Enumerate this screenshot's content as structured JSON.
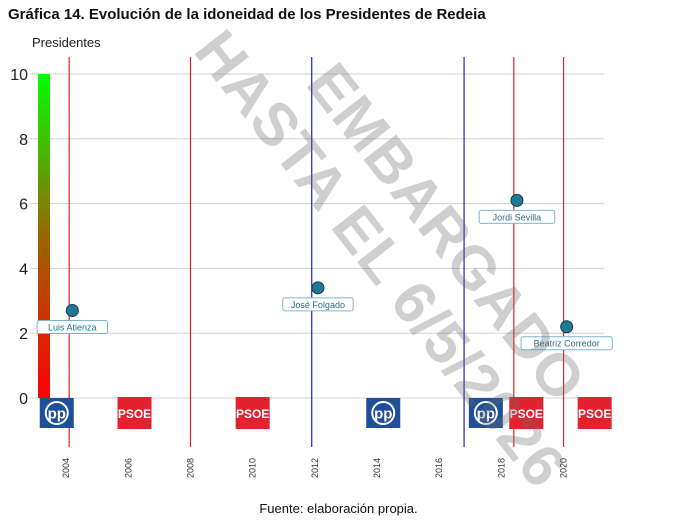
{
  "title": "Gráfica 14. Evolución de la idoneidad de los Presidentes de Redeia",
  "source": "Fuente: elaboración propia.",
  "watermark": "EMBARGADO HASTA EL 6/5/2026",
  "chart_data": {
    "type": "scatter",
    "title": "Gráfica 14. Evolución de la idoneidad de los Presidentes de Redeia",
    "ylabel": "Presidentes",
    "ylim": [
      0,
      10
    ],
    "xlim": [
      2003.0,
      2021.3
    ],
    "y_ticks": [
      0,
      2,
      4,
      6,
      8,
      10
    ],
    "x_ticks": [
      2004,
      2006,
      2008,
      2010,
      2012,
      2014,
      2016,
      2018,
      2020
    ],
    "grid": "horizontal",
    "points": [
      {
        "name": "Luis Atienza",
        "x": 2004.2,
        "y": 2.7
      },
      {
        "name": "José Folgado",
        "x": 2012.1,
        "y": 3.4
      },
      {
        "name": "Jordi Sevilla",
        "x": 2018.5,
        "y": 6.1
      },
      {
        "name": "Beatriz Corredor",
        "x": 2020.1,
        "y": 2.2
      }
    ],
    "vertical_lines": [
      {
        "x": 2004.1,
        "color": "#e0262a"
      },
      {
        "x": 2008.0,
        "color": "#e0262a"
      },
      {
        "x": 2011.9,
        "color": "#2020c0"
      },
      {
        "x": 2016.8,
        "color": "#2020c0"
      },
      {
        "x": 2018.4,
        "color": "#e0262a"
      },
      {
        "x": 2020.0,
        "color": "#e0262a"
      }
    ],
    "party_logos": [
      {
        "party": "PP",
        "x": 2003.7,
        "color": "#1f4e9a"
      },
      {
        "party": "PSOE",
        "x": 2006.2,
        "color": "#e3212f"
      },
      {
        "party": "PSOE",
        "x": 2010.0,
        "color": "#e3212f"
      },
      {
        "party": "PP",
        "x": 2014.2,
        "color": "#1f4e9a"
      },
      {
        "party": "PP",
        "x": 2017.5,
        "color": "#1f4e9a"
      },
      {
        "party": "PSOE",
        "x": 2018.8,
        "color": "#e3212f"
      },
      {
        "party": "PSOE",
        "x": 2021.0,
        "color": "#e3212f"
      }
    ],
    "colorbar": {
      "low": "#ff0000",
      "mid": "#996600",
      "high": "#00ff00"
    }
  }
}
